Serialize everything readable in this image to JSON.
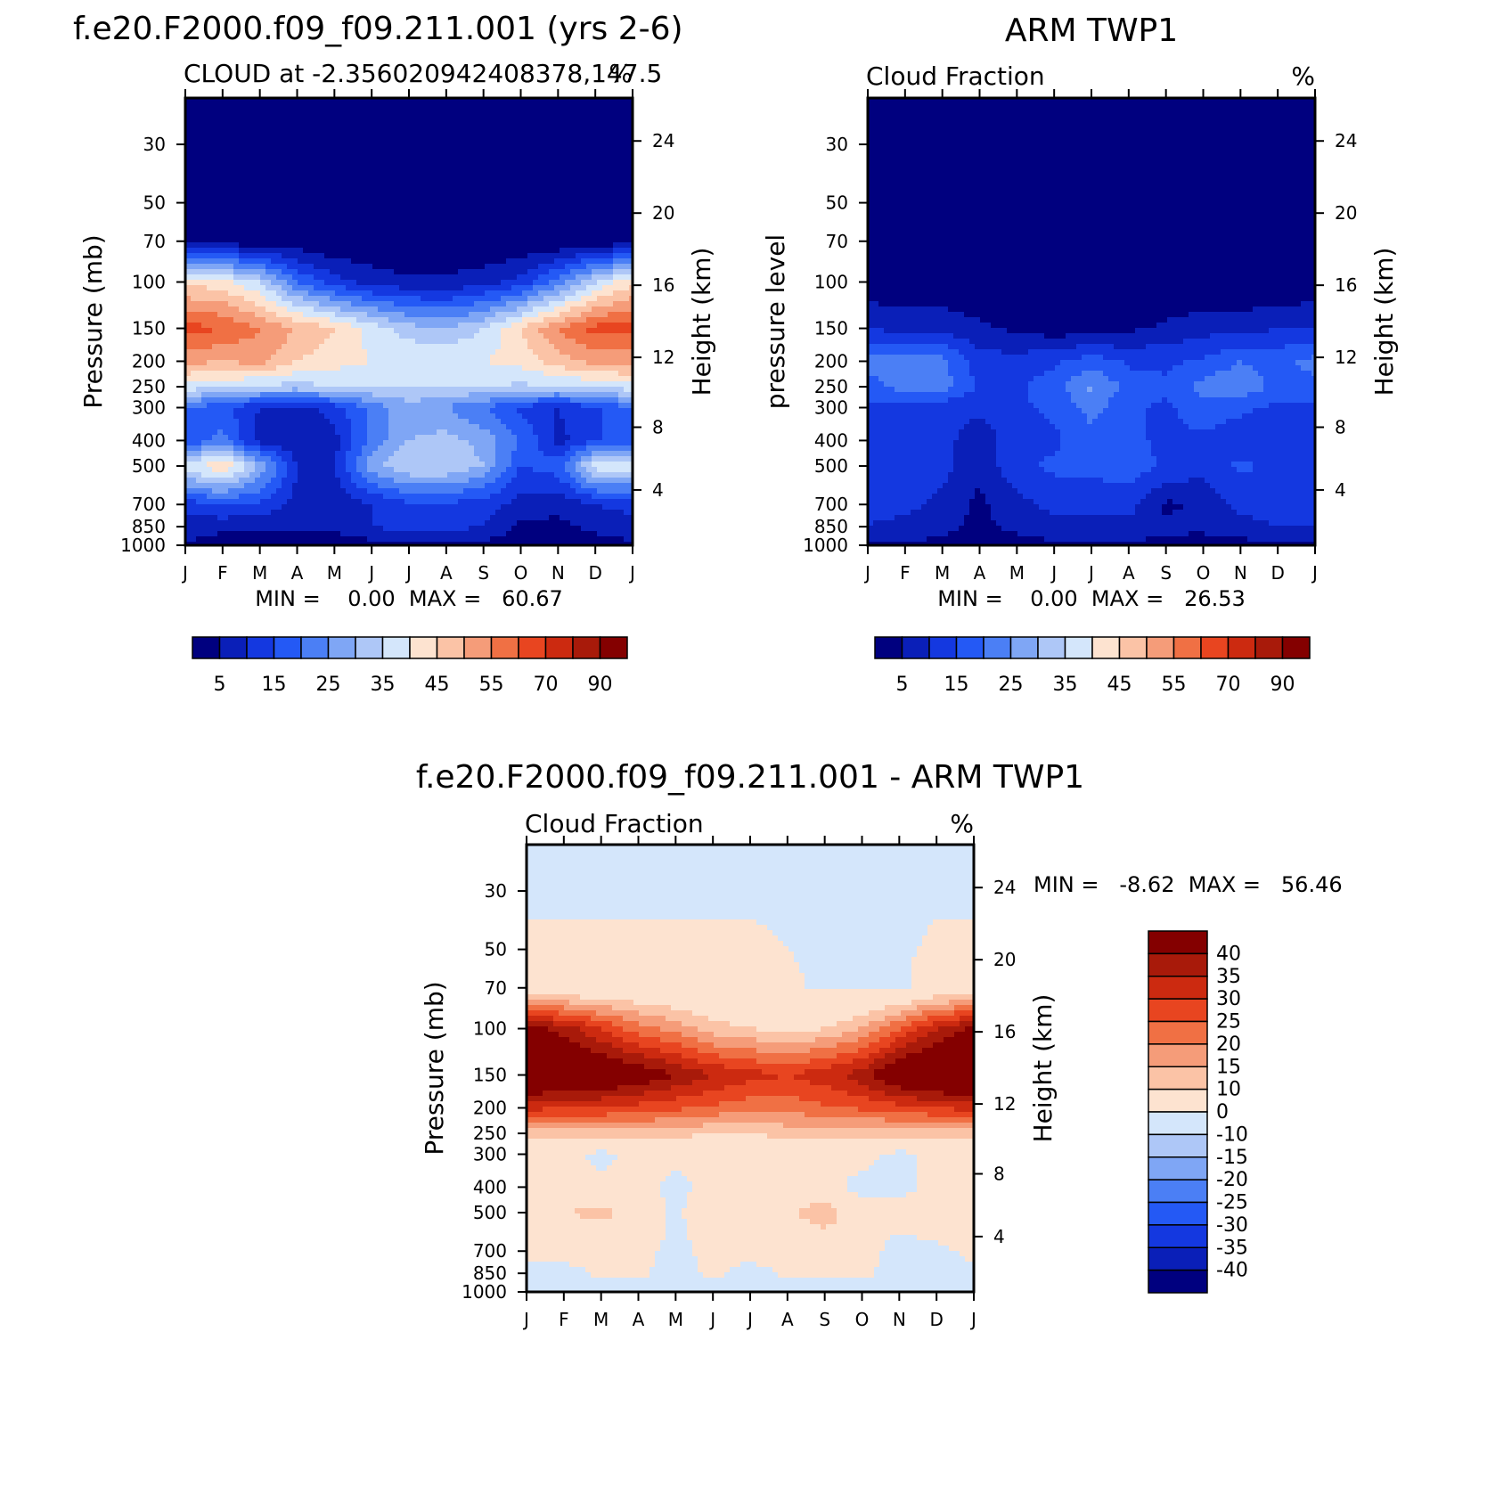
{
  "chart_data": [
    {
      "type": "heatmap",
      "title": "f.e20.F2000.f09_f09.211.001 (yrs 2-6)",
      "subtitle_left": "CLOUD at -2.356020942408378,147.5",
      "subtitle_right": "%",
      "xlabel": "",
      "ylabel": "Pressure (mb)",
      "y2label": "Height (km)",
      "x_ticklabels": [
        "J",
        "F",
        "M",
        "A",
        "M",
        "J",
        "J",
        "A",
        "S",
        "O",
        "N",
        "D",
        "J"
      ],
      "y_ticks": [
        30,
        50,
        70,
        100,
        150,
        200,
        250,
        300,
        400,
        500,
        700,
        850,
        1000
      ],
      "y2_ticks": [
        24,
        20,
        16,
        12,
        8,
        4
      ],
      "ylim": [
        1000,
        20
      ],
      "stats_text": "MIN =    0.00  MAX =   60.67",
      "min": 0.0,
      "max": 60.67,
      "colorbar_labels": [
        "5",
        "15",
        "25",
        "35",
        "45",
        "55",
        "70",
        "90"
      ],
      "colorbar_colors": [
        "#00007f",
        "#0a1fb8",
        "#1438e0",
        "#2459f5",
        "#4b7ff5",
        "#7fa6f5",
        "#aec7f7",
        "#d4e6fb",
        "#fde3d0",
        "#fbc3a6",
        "#f59c79",
        "#f07044",
        "#e84520",
        "#cc2a10",
        "#a81a0a",
        "#840000"
      ],
      "levels": [
        30,
        50,
        70,
        100,
        150,
        200,
        250,
        300,
        400,
        500,
        700,
        850,
        1000
      ],
      "months": [
        "J",
        "F",
        "M",
        "A",
        "M",
        "J",
        "J",
        "A",
        "S",
        "O",
        "N",
        "D",
        "J"
      ],
      "values": [
        [
          0,
          0,
          0,
          0,
          0,
          0,
          0,
          0,
          0,
          0,
          0,
          0,
          0
        ],
        [
          0,
          0,
          0,
          0,
          0,
          0,
          0,
          0,
          0,
          0,
          0,
          0,
          0
        ],
        [
          2,
          2,
          1,
          1,
          0,
          0,
          0,
          0,
          0,
          0,
          0,
          1,
          2
        ],
        [
          44,
          42,
          35,
          20,
          12,
          8,
          6,
          6,
          8,
          12,
          22,
          35,
          44
        ],
        [
          62,
          60,
          55,
          50,
          45,
          38,
          32,
          30,
          35,
          45,
          55,
          62,
          62
        ],
        [
          52,
          50,
          52,
          45,
          42,
          40,
          40,
          40,
          40,
          42,
          48,
          52,
          52
        ],
        [
          38,
          36,
          34,
          33,
          35,
          35,
          35,
          35,
          35,
          34,
          34,
          36,
          38
        ],
        [
          20,
          16,
          10,
          8,
          12,
          22,
          28,
          25,
          20,
          14,
          10,
          14,
          20
        ],
        [
          15,
          22,
          8,
          6,
          8,
          22,
          30,
          32,
          28,
          20,
          8,
          15,
          15
        ],
        [
          38,
          45,
          30,
          10,
          10,
          28,
          35,
          35,
          30,
          15,
          18,
          38,
          38
        ],
        [
          12,
          16,
          14,
          8,
          6,
          10,
          14,
          14,
          12,
          8,
          6,
          10,
          12
        ],
        [
          8,
          6,
          6,
          6,
          6,
          10,
          12,
          12,
          10,
          4,
          4,
          6,
          8
        ],
        [
          4,
          3,
          3,
          3,
          2,
          3,
          3,
          3,
          3,
          2,
          2,
          3,
          4
        ]
      ]
    },
    {
      "type": "heatmap",
      "title": "ARM TWP1",
      "subtitle_left": "Cloud Fraction",
      "subtitle_right": "%",
      "xlabel": "",
      "ylabel": "pressure level",
      "y2label": "Height (km)",
      "x_ticklabels": [
        "J",
        "F",
        "M",
        "A",
        "M",
        "J",
        "J",
        "A",
        "S",
        "O",
        "N",
        "D",
        "J"
      ],
      "y_ticks": [
        30,
        50,
        70,
        100,
        150,
        200,
        250,
        300,
        400,
        500,
        700,
        850,
        1000
      ],
      "y2_ticks": [
        24,
        20,
        16,
        12,
        8,
        4
      ],
      "ylim": [
        1000,
        20
      ],
      "stats_text": "MIN =    0.00  MAX =   26.53",
      "min": 0.0,
      "max": 26.53,
      "colorbar_labels": [
        "5",
        "15",
        "25",
        "35",
        "45",
        "55",
        "70",
        "90"
      ],
      "colorbar_colors": [
        "#00007f",
        "#0a1fb8",
        "#1438e0",
        "#2459f5",
        "#4b7ff5",
        "#7fa6f5",
        "#aec7f7",
        "#d4e6fb",
        "#fde3d0",
        "#fbc3a6",
        "#f59c79",
        "#f07044",
        "#e84520",
        "#cc2a10",
        "#a81a0a",
        "#840000"
      ],
      "levels": [
        30,
        50,
        70,
        100,
        150,
        200,
        250,
        300,
        400,
        500,
        700,
        850,
        1000
      ],
      "months": [
        "J",
        "F",
        "M",
        "A",
        "M",
        "J",
        "J",
        "A",
        "S",
        "O",
        "N",
        "D",
        "J"
      ],
      "values": [
        [
          0,
          0,
          0,
          0,
          0,
          0,
          0,
          0,
          0,
          0,
          0,
          0,
          0
        ],
        [
          0,
          0,
          0,
          0,
          0,
          0,
          0,
          0,
          0,
          0,
          0,
          0,
          0
        ],
        [
          0,
          0,
          0,
          0,
          0,
          0,
          0,
          0,
          0,
          0,
          0,
          0,
          0
        ],
        [
          1,
          1,
          1,
          1,
          0,
          0,
          0,
          0,
          0,
          0,
          0,
          0,
          1
        ],
        [
          10,
          8,
          8,
          6,
          4,
          2,
          2,
          4,
          6,
          8,
          8,
          10,
          10
        ],
        [
          22,
          22,
          22,
          12,
          12,
          14,
          18,
          14,
          14,
          16,
          20,
          18,
          22
        ],
        [
          18,
          22,
          22,
          14,
          14,
          18,
          26,
          18,
          16,
          22,
          24,
          18,
          18
        ],
        [
          14,
          12,
          12,
          12,
          14,
          16,
          22,
          16,
          14,
          18,
          16,
          14,
          14
        ],
        [
          14,
          12,
          12,
          6,
          14,
          14,
          18,
          16,
          14,
          14,
          12,
          12,
          14
        ],
        [
          14,
          14,
          12,
          6,
          14,
          16,
          16,
          18,
          14,
          12,
          16,
          14,
          14
        ],
        [
          12,
          12,
          8,
          4,
          8,
          12,
          12,
          12,
          4,
          6,
          12,
          12,
          12
        ],
        [
          10,
          8,
          6,
          4,
          6,
          8,
          8,
          8,
          6,
          6,
          8,
          10,
          10
        ],
        [
          4,
          4,
          4,
          3,
          3,
          4,
          4,
          4,
          4,
          3,
          3,
          4,
          4
        ]
      ]
    },
    {
      "type": "heatmap",
      "title": "f.e20.F2000.f09_f09.211.001 - ARM TWP1",
      "subtitle_left": "Cloud Fraction",
      "subtitle_right": "%",
      "xlabel": "",
      "ylabel": "Pressure (mb)",
      "y2label": "Height (km)",
      "x_ticklabels": [
        "J",
        "F",
        "M",
        "A",
        "M",
        "J",
        "J",
        "A",
        "S",
        "O",
        "N",
        "D",
        "J"
      ],
      "y_ticks": [
        30,
        50,
        70,
        100,
        150,
        200,
        250,
        300,
        400,
        500,
        700,
        850,
        1000
      ],
      "y2_ticks": [
        24,
        20,
        16,
        12,
        8,
        4
      ],
      "ylim": [
        1000,
        20
      ],
      "stats_text": "MIN =   -8.62  MAX =   56.46",
      "min": -8.62,
      "max": 56.46,
      "colorbar_labels": [
        "40",
        "35",
        "30",
        "25",
        "20",
        "15",
        "10",
        "0",
        "-10",
        "-15",
        "-20",
        "-25",
        "-30",
        "-35",
        "-40"
      ],
      "colorbar_colors": [
        "#840000",
        "#a81a0a",
        "#cc2a10",
        "#e84520",
        "#f07044",
        "#f59c79",
        "#fbc3a6",
        "#fde3d0",
        "#d4e6fb",
        "#aec7f7",
        "#7fa6f5",
        "#4b7ff5",
        "#2459f5",
        "#1438e0",
        "#0a1fb8",
        "#00007f"
      ],
      "levels": [
        30,
        50,
        70,
        100,
        150,
        200,
        250,
        300,
        400,
        500,
        700,
        850,
        1000
      ],
      "months": [
        "J",
        "F",
        "M",
        "A",
        "M",
        "J",
        "J",
        "A",
        "S",
        "O",
        "N",
        "D",
        "J"
      ],
      "values": [
        [
          -1,
          -1,
          -1,
          -1,
          -1,
          -1,
          -1,
          -1,
          -1,
          -1,
          -1,
          -1,
          -1
        ],
        [
          1,
          1,
          1,
          1,
          1,
          1,
          1,
          0,
          -1,
          -1,
          -1,
          1,
          1
        ],
        [
          3,
          3,
          3,
          3,
          2,
          2,
          2,
          1,
          -1,
          -1,
          -1,
          3,
          3
        ],
        [
          42,
          38,
          30,
          22,
          18,
          12,
          10,
          8,
          10,
          15,
          25,
          35,
          42
        ],
        [
          52,
          50,
          48,
          45,
          40,
          35,
          32,
          30,
          33,
          38,
          48,
          52,
          52
        ],
        [
          32,
          30,
          30,
          28,
          26,
          24,
          22,
          22,
          24,
          26,
          28,
          30,
          32
        ],
        [
          12,
          12,
          12,
          12,
          12,
          10,
          10,
          12,
          12,
          12,
          12,
          12,
          12
        ],
        [
          2,
          2,
          -2,
          2,
          2,
          2,
          4,
          4,
          2,
          2,
          -2,
          2,
          2
        ],
        [
          2,
          2,
          2,
          2,
          -2,
          2,
          2,
          2,
          2,
          -2,
          -2,
          2,
          2
        ],
        [
          6,
          10,
          12,
          8,
          -2,
          8,
          10,
          8,
          16,
          2,
          2,
          6,
          6
        ],
        [
          2,
          2,
          2,
          2,
          -2,
          2,
          2,
          2,
          2,
          2,
          -2,
          -2,
          2
        ],
        [
          -2,
          -2,
          1,
          1,
          -2,
          1,
          -2,
          1,
          1,
          1,
          -2,
          -2,
          -2
        ],
        [
          -2,
          -2,
          -2,
          -2,
          -2,
          -2,
          -2,
          -2,
          -2,
          -2,
          -2,
          -2,
          -2
        ]
      ]
    }
  ]
}
